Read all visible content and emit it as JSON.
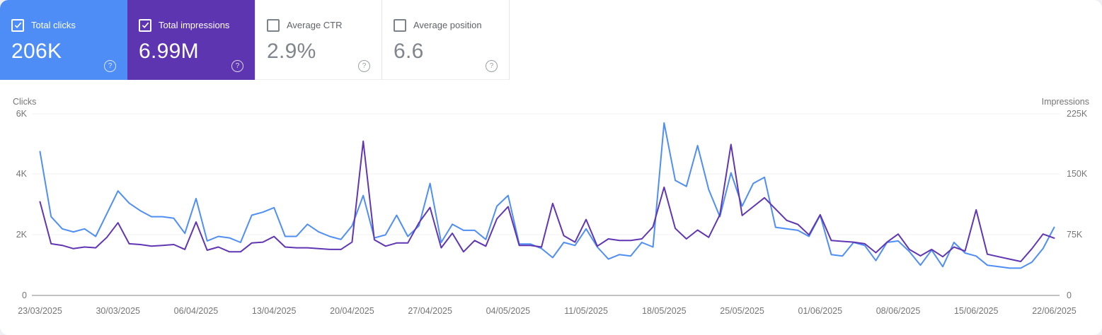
{
  "cards": [
    {
      "label": "Total clicks",
      "value": "206K",
      "checked": true,
      "bg": "#4e8df5"
    },
    {
      "label": "Total impressions",
      "value": "6.99M",
      "checked": true,
      "bg": "#5e35b1"
    },
    {
      "label": "Average CTR",
      "value": "2.9%",
      "checked": false,
      "bg": null
    },
    {
      "label": "Average position",
      "value": "6.6",
      "checked": false,
      "bg": null
    }
  ],
  "help_icon_glyph": "?",
  "colors": {
    "clicks_accent": "#4e8df5",
    "impressions_accent": "#5e35b1",
    "clicks_line": "#4f8ff5",
    "impressions_line": "#6036b3",
    "gridline": "#f0f0f0",
    "axis_line": "#c2c2c2",
    "axis_text": "#757575"
  },
  "chart_data": {
    "type": "line",
    "title": "",
    "x_start": "23/03/2025",
    "x_end": "22/06/2025",
    "x_unit": "day",
    "grid": true,
    "x_tick_labels": [
      "23/03/2025",
      "30/03/2025",
      "06/04/2025",
      "13/04/2025",
      "20/04/2025",
      "27/04/2025",
      "04/05/2025",
      "11/05/2025",
      "18/05/2025",
      "25/05/2025",
      "01/06/2025",
      "08/06/2025",
      "15/06/2025",
      "22/06/2025"
    ],
    "left_axis": {
      "title": "Clicks",
      "ticks_top_to_bottom": [
        "6K",
        "4K",
        "2K",
        "0"
      ],
      "min": 0,
      "max": 6000
    },
    "right_axis": {
      "title": "Impressions",
      "ticks_top_to_bottom": [
        "225K",
        "150K",
        "75K",
        "0"
      ],
      "min": 0,
      "max": 225000
    },
    "series": [
      {
        "name": "Total clicks",
        "axis": "left",
        "color": "#4f8ff5",
        "values": [
          4750,
          2600,
          2200,
          2100,
          2200,
          1950,
          2700,
          3450,
          3050,
          2800,
          2600,
          2600,
          2550,
          2050,
          3200,
          1800,
          1950,
          1900,
          1750,
          2650,
          2750,
          2900,
          1950,
          1950,
          2350,
          2100,
          1950,
          1850,
          2300,
          3300,
          1900,
          2000,
          2650,
          1950,
          2300,
          3700,
          1750,
          2350,
          2150,
          2150,
          1850,
          2950,
          3300,
          1700,
          1700,
          1550,
          1250,
          1750,
          1650,
          2200,
          1600,
          1200,
          1350,
          1300,
          1750,
          1600,
          5700,
          3800,
          3600,
          4950,
          3500,
          2600,
          4050,
          2950,
          3700,
          3900,
          2250,
          2200,
          2150,
          1950,
          2650,
          1350,
          1300,
          1750,
          1650,
          1150,
          1750,
          1800,
          1450,
          1000,
          1500,
          950,
          1750,
          1400,
          1300,
          1000,
          950,
          900,
          900,
          1100,
          1550,
          2250
        ]
      },
      {
        "name": "Total impressions",
        "axis": "right",
        "color": "#6036b3",
        "values": [
          116000,
          64000,
          62000,
          58000,
          60000,
          59000,
          72000,
          90000,
          64000,
          63000,
          61000,
          62000,
          63000,
          57000,
          91000,
          56000,
          60000,
          54000,
          54000,
          65000,
          66000,
          73000,
          60000,
          59000,
          59000,
          58000,
          57000,
          57000,
          66000,
          191000,
          69000,
          61000,
          65000,
          65000,
          90000,
          109000,
          59000,
          77000,
          54000,
          68000,
          61000,
          95000,
          110000,
          62000,
          62000,
          60000,
          114000,
          74000,
          66000,
          94000,
          61000,
          70000,
          68000,
          68000,
          70000,
          85000,
          134000,
          83000,
          70000,
          81000,
          72000,
          100000,
          187000,
          99000,
          110000,
          121000,
          107000,
          93000,
          88000,
          75000,
          100000,
          68000,
          67000,
          66000,
          64000,
          53000,
          66000,
          76000,
          57000,
          49000,
          57000,
          48000,
          60000,
          55000,
          106000,
          51000,
          48000,
          45000,
          42000,
          58000,
          76000,
          71000
        ]
      }
    ]
  }
}
